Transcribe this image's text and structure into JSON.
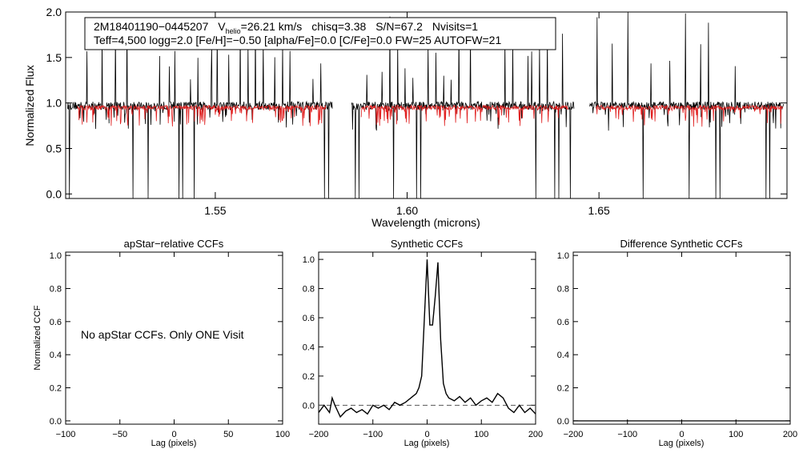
{
  "chart_data": [
    {
      "type": "line",
      "title": "",
      "xlabel": "Wavelength (microns)",
      "ylabel": "Normalized Flux",
      "xlim": [
        1.511,
        1.699
      ],
      "ylim": [
        -0.05,
        2.0
      ],
      "xticks": [
        1.55,
        1.6,
        1.65
      ],
      "xtick_labels": [
        "1.55",
        "1.60",
        "1.65"
      ],
      "yticks": [
        0.0,
        0.5,
        1.0,
        1.5,
        2.0
      ],
      "ytick_labels": [
        "0.0",
        "0.5",
        "1.0",
        "1.5",
        "2.0"
      ],
      "detector_gaps": [
        [
          1.5805,
          1.5855
        ],
        [
          1.6435,
          1.6475
        ]
      ],
      "series": [
        {
          "name": "observed spectrum",
          "color": "#000000",
          "baseline": 0.97,
          "spikes": [
            1.5165,
            1.5205,
            1.524,
            1.527,
            1.5285,
            1.5325,
            1.5355,
            1.538,
            1.5395,
            1.5435,
            1.5455,
            1.549,
            1.5505,
            1.5535,
            1.5565,
            1.5585,
            1.5605,
            1.5625,
            1.5655,
            1.5675,
            1.5695,
            1.5755,
            1.5775,
            1.5895,
            1.5935,
            1.5955,
            1.5975,
            1.5995,
            1.6015,
            1.6035,
            1.6055,
            1.6075,
            1.6095,
            1.6115,
            1.6135,
            1.6165,
            1.6255,
            1.6275,
            1.6315,
            1.6325,
            1.6345,
            1.6365,
            1.6385,
            1.6405,
            1.6495,
            1.6535,
            1.6575,
            1.6615,
            1.6635,
            1.6685,
            1.6725,
            1.6765,
            1.6785,
            1.6815,
            1.6855,
            1.6935,
            1.6945
          ],
          "dips": [
            1.512,
            1.5285,
            1.5325,
            1.5405,
            1.5415,
            1.5445,
            1.5785,
            1.5795,
            1.5865,
            1.5875,
            1.5965,
            1.6025,
            1.6035,
            1.6335,
            1.6385,
            1.6395,
            1.6425,
            1.6475,
            1.6615,
            1.6735,
            1.6805,
            1.6815,
            1.6935,
            1.6945
          ]
        },
        {
          "name": "synthetic model",
          "color": "#e02020",
          "baseline": 0.95,
          "x_range": [
            1.514,
            1.698
          ]
        }
      ]
    },
    {
      "type": "line",
      "title": "apStar−relative CCFs",
      "xlabel": "Lag (pixels)",
      "ylabel": "Normalized CCF",
      "xlim": [
        -100,
        100
      ],
      "ylim": [
        -0.02,
        1.02
      ],
      "xticks": [
        -100,
        -50,
        0,
        50,
        100
      ],
      "xtick_labels": [
        "−100",
        "−50",
        "0",
        "50",
        "100"
      ],
      "yticks": [
        0.0,
        0.2,
        0.4,
        0.6,
        0.8,
        1.0
      ],
      "ytick_labels": [
        "0.0",
        "0.2",
        "0.4",
        "0.6",
        "0.8",
        "1.0"
      ],
      "annotation": "No apStar CCFs.  Only ONE Visit",
      "series": []
    },
    {
      "type": "line",
      "title": "Synthetic CCFs",
      "xlabel": "Lag (pixels)",
      "ylabel": "",
      "xlim": [
        -200,
        200
      ],
      "ylim": [
        -0.13,
        1.05
      ],
      "xticks": [
        -200,
        -100,
        0,
        100,
        200
      ],
      "xtick_labels": [
        "−200",
        "−100",
        "0",
        "100",
        "200"
      ],
      "yticks": [
        0.0,
        0.2,
        0.4,
        0.6,
        0.8,
        1.0
      ],
      "ytick_labels": [
        "0.0",
        "0.2",
        "0.4",
        "0.6",
        "0.8",
        "1.0"
      ],
      "reference_line": 0.0,
      "series": [
        {
          "name": "synthetic CCF",
          "color": "#000000",
          "x": [
            -200,
            -190,
            -180,
            -175,
            -170,
            -160,
            -150,
            -140,
            -130,
            -120,
            -110,
            -100,
            -90,
            -80,
            -70,
            -60,
            -50,
            -40,
            -30,
            -20,
            -15,
            -10,
            -5,
            0,
            5,
            10,
            15,
            20,
            25,
            30,
            35,
            40,
            50,
            60,
            70,
            80,
            90,
            100,
            110,
            120,
            130,
            140,
            150,
            160,
            170,
            180,
            190,
            200
          ],
          "y": [
            -0.05,
            0.0,
            -0.05,
            0.05,
            0.0,
            -0.08,
            -0.04,
            -0.02,
            -0.05,
            -0.03,
            -0.06,
            0.0,
            -0.02,
            0.0,
            -0.03,
            0.02,
            0.0,
            0.02,
            0.05,
            0.08,
            0.12,
            0.2,
            0.6,
            1.0,
            0.55,
            0.55,
            0.75,
            0.98,
            0.45,
            0.15,
            0.08,
            0.05,
            0.03,
            0.06,
            0.02,
            0.05,
            0.0,
            0.03,
            0.05,
            0.02,
            0.08,
            0.05,
            -0.02,
            -0.05,
            0.0,
            -0.05,
            -0.02,
            -0.06
          ]
        }
      ]
    },
    {
      "type": "line",
      "title": "Difference Synthetic CCFs",
      "xlabel": "Lag (pixels)",
      "ylabel": "",
      "xlim": [
        -200,
        200
      ],
      "ylim": [
        -0.02,
        1.02
      ],
      "xticks": [
        -200,
        -100,
        0,
        100,
        200
      ],
      "xtick_labels": [
        "−200",
        "−100",
        "0",
        "100",
        "200"
      ],
      "yticks": [
        0.0,
        0.2,
        0.4,
        0.6,
        0.8,
        1.0
      ],
      "ytick_labels": [
        "0.0",
        "0.2",
        "0.4",
        "0.6",
        "0.8",
        "1.0"
      ],
      "series": [
        {
          "name": "difference CCF",
          "color": "#000000",
          "x": [
            -200,
            200
          ],
          "y": [
            0.0,
            0.0
          ]
        }
      ]
    }
  ],
  "info_box": {
    "star_id": "2M18401190−0445207",
    "vhelio_prefix": "V",
    "vhelio_sub": "helio",
    "vhelio_value": "=26.21 km/s",
    "chisq": "chisq=3.38",
    "snr": "S/N=67.2",
    "nvisits": "Nvisits=1",
    "params": "Teff=4,500 logg=2.0 [Fe/H]=−0.50 [alpha/Fe]=0.0 [C/Fe]=0.0 FW=25 AUTOFW=21"
  }
}
